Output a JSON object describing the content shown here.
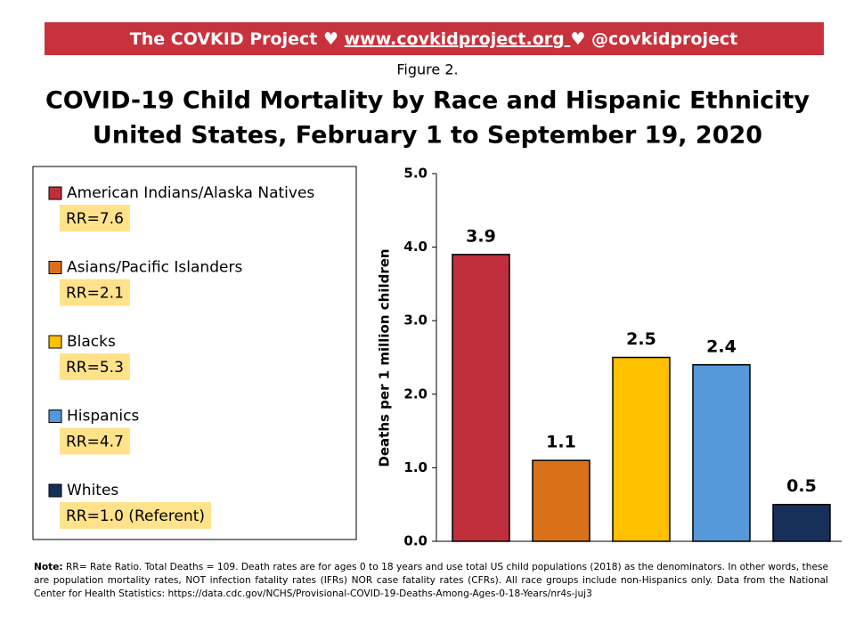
{
  "banner": {
    "prefix": "The COVKID Project ♥ ",
    "link": "www.covkidproject.org ",
    "suffix": " ♥ @covkidproject"
  },
  "figure_label": "Figure 2.",
  "chart_data": {
    "type": "bar",
    "title": [
      "COVID-19 Child Mortality by Race and Hispanic Ethnicity",
      "United States, February 1 to September 19, 2020"
    ],
    "ylabel": "Deaths per 1 million children",
    "categories": [
      "American Indians/Alaska Natives",
      "Asians/Pacific Islanders",
      "Blacks",
      "Hispanics",
      "Whites"
    ],
    "values": [
      3.9,
      1.1,
      2.5,
      2.4,
      0.5
    ],
    "colors": [
      "#c0303c",
      "#d9711a",
      "#ffc000",
      "#5599db",
      "#17305a"
    ],
    "legend_notes": [
      "RR=7.6",
      "RR=2.1",
      "RR=5.3",
      "RR=4.7",
      "RR=1.0 (Referent)"
    ],
    "ylim": [
      0,
      5
    ],
    "yticks": [
      {
        "value": 0,
        "label": "0.0"
      },
      {
        "value": 1,
        "label": "1.0"
      },
      {
        "value": 2,
        "label": "2.0"
      },
      {
        "value": 3,
        "label": "3.0"
      },
      {
        "value": 4,
        "label": "4.0"
      },
      {
        "value": 5,
        "label": "5.0"
      }
    ],
    "legend": "left"
  },
  "note": {
    "label": "Note:",
    "text": " RR= Rate Ratio. Total Deaths = 109. Death rates are for ages 0 to 18 years and use total US child populations (2018) as the denominators. In other words, these are population mortality rates, NOT infection fatality rates (IFRs) NOR case fatality rates (CFRs). All race groups include non-Hispanics only. Data from the National Center for Health Statistics:  https://data.cdc.gov/NCHS/Provisional-COVID-19-Deaths-Among-Ages-0-18-Years/nr4s-juj3"
  }
}
